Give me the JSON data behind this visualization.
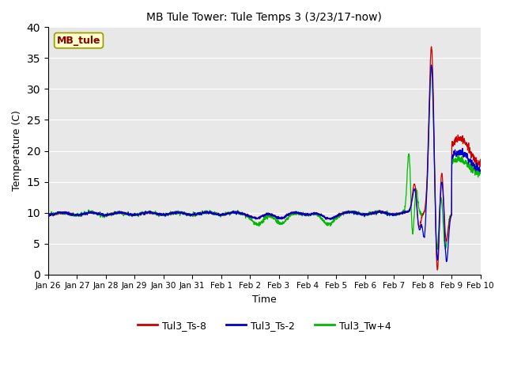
{
  "title": "MB Tule Tower: Tule Temps 3 (3/23/17-now)",
  "xlabel": "Time",
  "ylabel": "Temperature (C)",
  "ylim": [
    0,
    40
  ],
  "yticks": [
    0,
    5,
    10,
    15,
    20,
    25,
    30,
    35,
    40
  ],
  "xtick_labels": [
    "Jan 26",
    "Jan 27",
    "Jan 28",
    "Jan 29",
    "Jan 30",
    "Jan 31",
    "Feb 1",
    "Feb 2",
    "Feb 3",
    "Feb 4",
    "Feb 5",
    "Feb 6",
    "Feb 7",
    "Feb 8",
    "Feb 9",
    "Feb 10"
  ],
  "bg_color": "#e8e8e8",
  "fig_color": "#ffffff",
  "ts8_color": "#cc0000",
  "ts2_color": "#0000cc",
  "tw4_color": "#00bb00",
  "legend_label_color": "#880000",
  "box_label": "MB_tule",
  "box_bg": "#ffffcc",
  "box_border": "#999900",
  "line_width": 0.9
}
